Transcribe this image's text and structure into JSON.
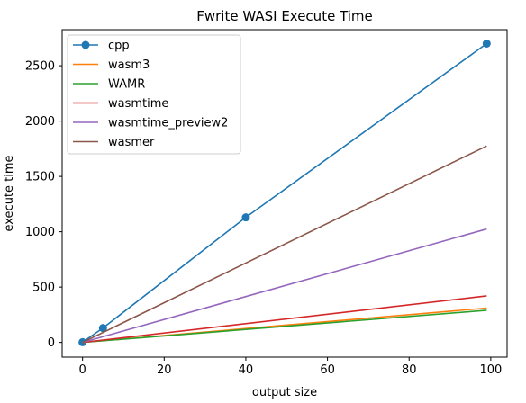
{
  "chart_data": {
    "type": "line",
    "title": "Fwrite WASI Execute Time",
    "xlabel": "output size",
    "ylabel": "execute time",
    "xlim": [
      -5,
      104
    ],
    "ylim": [
      -133,
      2826
    ],
    "xticks": [
      0,
      20,
      40,
      60,
      80,
      100
    ],
    "yticks": [
      0,
      500,
      1000,
      1500,
      2000,
      2500
    ],
    "legend_position": "top-left",
    "grid": false,
    "series": [
      {
        "name": "cpp",
        "color": "#1f77b4",
        "marker": "circle",
        "x": [
          0,
          5,
          40,
          99
        ],
        "y": [
          2,
          130,
          1130,
          2700
        ]
      },
      {
        "name": "wasm3",
        "color": "#ff7f0e",
        "marker": "none",
        "x": [
          0,
          99
        ],
        "y": [
          0,
          310
        ]
      },
      {
        "name": "WAMR",
        "color": "#2ca02c",
        "marker": "none",
        "x": [
          0,
          99
        ],
        "y": [
          0,
          290
        ]
      },
      {
        "name": "wasmtime",
        "color": "#d62728",
        "marker": "none",
        "x": [
          0,
          99
        ],
        "y": [
          0,
          420
        ]
      },
      {
        "name": "wasmtime_preview2",
        "color": "#9467bd",
        "marker": "none",
        "x": [
          0,
          99
        ],
        "y": [
          0,
          1025
        ]
      },
      {
        "name": "wasmer",
        "color": "#8c564b",
        "marker": "none",
        "x": [
          0,
          99
        ],
        "y": [
          0,
          1775
        ]
      }
    ]
  }
}
